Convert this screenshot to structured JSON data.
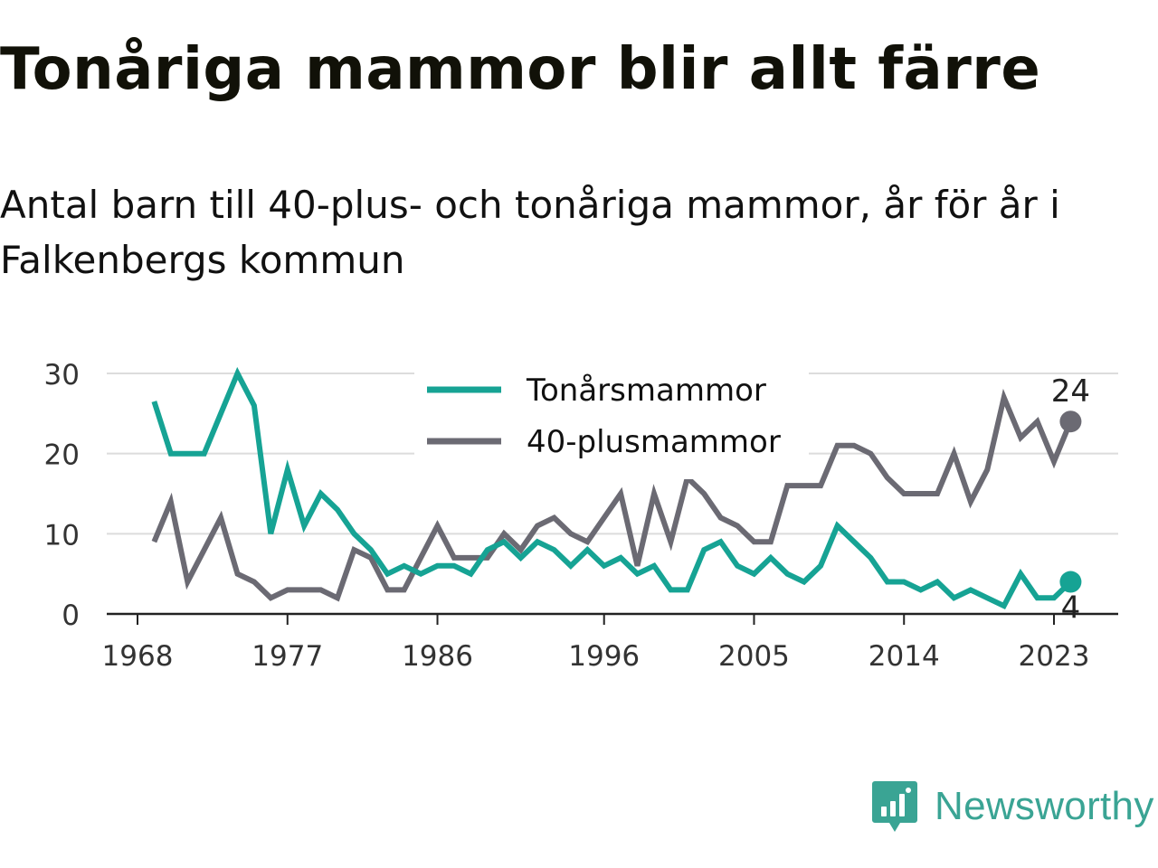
{
  "title": "Tonåriga mammor blir allt färre",
  "subtitle": "Antal barn till 40-plus- och tonåriga mammor, år för år i Falkenbergs kommun",
  "brand": {
    "name": "Newsworthy",
    "color": "#3aa494",
    "icon": "bar-chart-speech-bubble-icon"
  },
  "chart_data": {
    "type": "line",
    "x": [
      1969,
      1970,
      1971,
      1972,
      1973,
      1974,
      1975,
      1976,
      1977,
      1978,
      1979,
      1980,
      1981,
      1982,
      1983,
      1984,
      1985,
      1986,
      1987,
      1988,
      1989,
      1990,
      1991,
      1992,
      1993,
      1994,
      1995,
      1996,
      1997,
      1998,
      1999,
      2000,
      2001,
      2002,
      2003,
      2004,
      2005,
      2006,
      2007,
      2008,
      2009,
      2010,
      2011,
      2012,
      2013,
      2014,
      2015,
      2016,
      2017,
      2018,
      2019,
      2020,
      2021,
      2022,
      2023,
      2024
    ],
    "series": [
      {
        "name": "Tonårsmammor",
        "color": "#16a394",
        "values": [
          26.5,
          20,
          20,
          20,
          25,
          30,
          26,
          10,
          18,
          11,
          15,
          13,
          10,
          8,
          5,
          6,
          5,
          6,
          6,
          5,
          8,
          9,
          7,
          9,
          8,
          6,
          8,
          6,
          7,
          5,
          6,
          3,
          3,
          8,
          9,
          6,
          5,
          7,
          5,
          4,
          6,
          11,
          9,
          7,
          4,
          4,
          3,
          4,
          2,
          3,
          2,
          1,
          5,
          2,
          2,
          4
        ],
        "end_label": "4"
      },
      {
        "name": "40-plusmammor",
        "color": "#6b6a73",
        "values": [
          9,
          14,
          4,
          8,
          12,
          5,
          4,
          2,
          3,
          3,
          3,
          2,
          8,
          7,
          3,
          3,
          7,
          11,
          7,
          7,
          7,
          10,
          8,
          11,
          12,
          10,
          9,
          12,
          15,
          6,
          15,
          9,
          17,
          15,
          12,
          11,
          9,
          9,
          16,
          16,
          16,
          21,
          21,
          20,
          17,
          15,
          15,
          15,
          20,
          14,
          18,
          27,
          22,
          24,
          19,
          24
        ],
        "end_label": "24"
      }
    ],
    "x_ticks": [
      1968,
      1977,
      1986,
      1996,
      2005,
      2014,
      2023
    ],
    "y_ticks": [
      0,
      10,
      20,
      30
    ],
    "xlim": [
      1968,
      2025.5
    ],
    "ylim": [
      0,
      30
    ],
    "grid": true,
    "legend_position": "top-center"
  }
}
